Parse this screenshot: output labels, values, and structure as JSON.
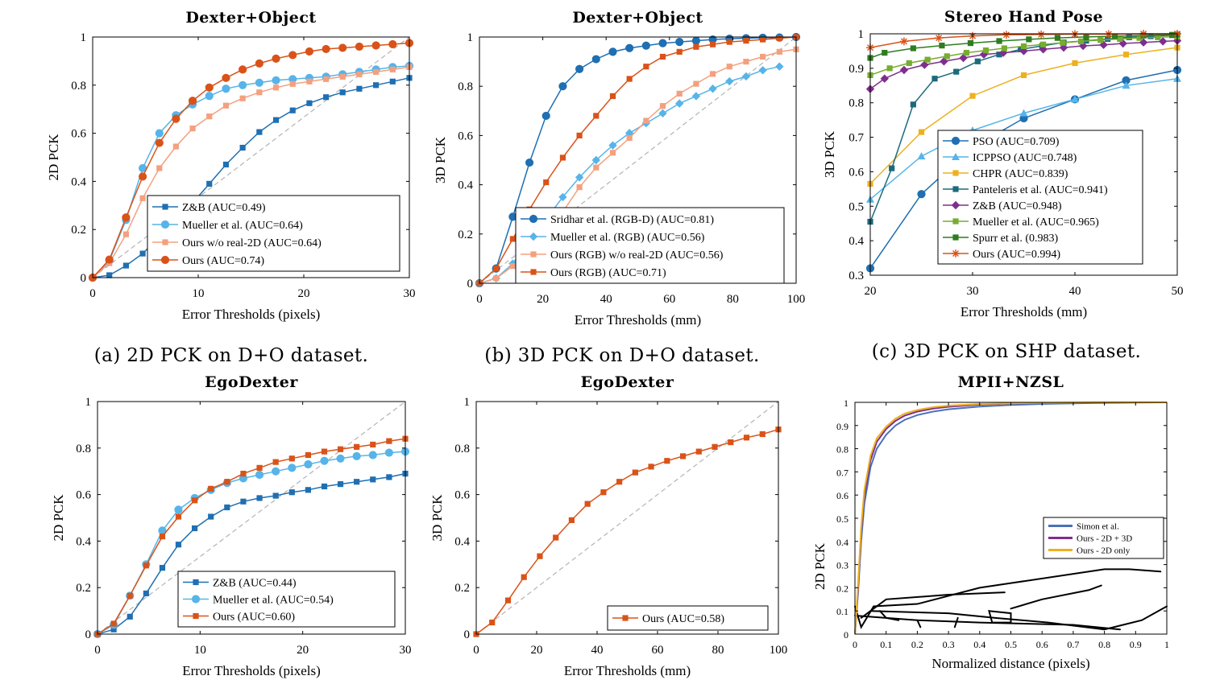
{
  "captions": [
    "(a) 2D PCK on D+O dataset.",
    "(b) 3D PCK on D+O dataset.",
    "(c) 3D PCK on SHP dataset."
  ],
  "colors": {
    "dark_blue": "#1f6fb2",
    "light_blue": "#56b4e9",
    "salmon": "#f4a07f",
    "red_orange": "#d95319",
    "yellow": "#edb120",
    "teal": "#1b6b7d",
    "purple": "#7e2f8e",
    "light_green": "#77ac30",
    "dark_green": "#2e7d1f",
    "steel_blue": "#4a72b8",
    "diag_gray": "#b3b3b3"
  },
  "chart_data": [
    {
      "id": "a",
      "type": "line",
      "title": "Dexter+Object",
      "xlabel": "Error Thresholds (pixels)",
      "ylabel": "2D PCK",
      "xlim": [
        0,
        30
      ],
      "ylim": [
        0,
        1
      ],
      "xticks": [
        "0",
        "10",
        "20",
        "30"
      ],
      "yticks": [
        "0",
        "0.2",
        "0.4",
        "0.6",
        "0.8",
        "1"
      ],
      "diagonal": true,
      "legend_position": "bottom-right",
      "x": [
        0,
        1.58,
        3.16,
        4.74,
        6.32,
        7.89,
        9.47,
        11.05,
        12.63,
        14.21,
        15.79,
        17.37,
        18.95,
        20.53,
        22.11,
        23.68,
        25.26,
        26.84,
        28.42,
        30
      ],
      "series": [
        {
          "name": "Z&B (AUC=0.49)",
          "color": "dark_blue",
          "marker": "square",
          "values": [
            0,
            0.01,
            0.05,
            0.1,
            0.17,
            0.24,
            0.31,
            0.39,
            0.47,
            0.54,
            0.605,
            0.655,
            0.695,
            0.725,
            0.75,
            0.77,
            0.785,
            0.8,
            0.815,
            0.83
          ]
        },
        {
          "name": "Mueller et al. (AUC=0.64)",
          "color": "light_blue",
          "marker": "circle",
          "values": [
            0,
            0.07,
            0.24,
            0.455,
            0.6,
            0.675,
            0.72,
            0.755,
            0.785,
            0.8,
            0.81,
            0.82,
            0.825,
            0.83,
            0.835,
            0.845,
            0.855,
            0.865,
            0.875,
            0.88
          ]
        },
        {
          "name": "Ours w/o real-2D (AUC=0.64)",
          "color": "salmon",
          "marker": "square",
          "values": [
            0,
            0.06,
            0.18,
            0.33,
            0.455,
            0.545,
            0.62,
            0.67,
            0.715,
            0.745,
            0.77,
            0.79,
            0.805,
            0.815,
            0.825,
            0.835,
            0.845,
            0.855,
            0.865,
            0.875
          ]
        },
        {
          "name": "Ours (AUC=0.74)",
          "color": "red_orange",
          "marker": "circle",
          "values": [
            0,
            0.075,
            0.25,
            0.42,
            0.56,
            0.66,
            0.735,
            0.79,
            0.83,
            0.865,
            0.89,
            0.91,
            0.925,
            0.94,
            0.95,
            0.955,
            0.96,
            0.965,
            0.97,
            0.975
          ]
        }
      ]
    },
    {
      "id": "b",
      "type": "line",
      "title": "Dexter+Object",
      "xlabel": "Error Thresholds (mm)",
      "ylabel": "3D PCK",
      "xlim": [
        0,
        100
      ],
      "ylim": [
        0,
        1
      ],
      "xticks": [
        "0",
        "20",
        "40",
        "60",
        "80",
        "100"
      ],
      "yticks": [
        "0",
        "0.2",
        "0.4",
        "0.6",
        "0.8",
        "1"
      ],
      "diagonal": true,
      "legend_position": "bottom-right",
      "series": [
        {
          "name": "Sridhar et al. (RGB-D) (AUC=0.81)",
          "color": "dark_blue",
          "marker": "circle",
          "x": [
            0,
            5.26,
            10.53,
            15.79,
            21.05,
            26.32,
            31.58,
            36.84,
            42.11,
            47.37,
            52.63,
            57.89,
            63.16,
            68.42,
            73.68,
            78.95,
            84.21,
            89.47,
            94.74,
            100
          ],
          "values": [
            0,
            0.06,
            0.27,
            0.49,
            0.68,
            0.8,
            0.87,
            0.91,
            0.94,
            0.955,
            0.965,
            0.975,
            0.98,
            0.985,
            0.99,
            0.993,
            0.995,
            0.997,
            0.998,
            1.0
          ]
        },
        {
          "name": "Mueller et al. (RGB) (AUC=0.56)",
          "color": "light_blue",
          "marker": "diamond",
          "x": [
            0,
            5.26,
            10.53,
            15.79,
            21.05,
            26.32,
            31.58,
            36.84,
            42.11,
            47.37,
            52.63,
            57.89,
            63.16,
            68.42,
            73.68,
            78.95,
            84.21,
            89.47,
            94.74
          ],
          "values": [
            0,
            0.02,
            0.08,
            0.17,
            0.26,
            0.35,
            0.43,
            0.5,
            0.56,
            0.61,
            0.65,
            0.69,
            0.73,
            0.76,
            0.79,
            0.82,
            0.84,
            0.865,
            0.88
          ]
        },
        {
          "name": "Ours (RGB) w/o real-2D (AUC=0.56)",
          "color": "salmon",
          "marker": "square",
          "x": [
            0,
            5.26,
            10.53,
            15.79,
            21.05,
            26.32,
            31.58,
            36.84,
            42.11,
            47.37,
            52.63,
            57.89,
            63.16,
            68.42,
            73.68,
            78.95,
            84.21,
            89.47,
            94.74,
            100
          ],
          "values": [
            0,
            0.02,
            0.07,
            0.14,
            0.21,
            0.29,
            0.39,
            0.47,
            0.53,
            0.59,
            0.66,
            0.72,
            0.77,
            0.81,
            0.85,
            0.88,
            0.9,
            0.92,
            0.94,
            0.95
          ]
        },
        {
          "name": "Ours (RGB) (AUC=0.71)",
          "color": "red_orange",
          "marker": "square",
          "x": [
            0,
            5.26,
            10.53,
            15.79,
            21.05,
            26.32,
            31.58,
            36.84,
            42.11,
            47.37,
            52.63,
            57.89,
            63.16,
            68.42,
            73.68,
            78.95,
            84.21,
            89.47,
            94.74,
            100
          ],
          "values": [
            0,
            0.06,
            0.18,
            0.3,
            0.41,
            0.51,
            0.6,
            0.68,
            0.76,
            0.83,
            0.88,
            0.92,
            0.94,
            0.96,
            0.97,
            0.98,
            0.985,
            0.99,
            0.995,
            1.0
          ]
        }
      ]
    },
    {
      "id": "c",
      "type": "line",
      "title": "Stereo Hand Pose",
      "xlabel": "Error Thresholds (mm)",
      "ylabel": "3D PCK",
      "xlim": [
        20,
        50
      ],
      "ylim": [
        0.3,
        1
      ],
      "xticks": [
        "20",
        "30",
        "40",
        "50"
      ],
      "yticks": [
        "0.3",
        "0.4",
        "0.5",
        "0.6",
        "0.7",
        "0.8",
        "0.9",
        "1"
      ],
      "diagonal": false,
      "legend_position": "center",
      "series": [
        {
          "name": "PSO (AUC=0.709)",
          "color": "dark_blue",
          "marker": "circle",
          "x": [
            20,
            25,
            30,
            35,
            40,
            45,
            50
          ],
          "values": [
            0.32,
            0.535,
            0.67,
            0.755,
            0.81,
            0.865,
            0.895
          ]
        },
        {
          "name": "ICPPSO (AUC=0.748)",
          "color": "light_blue",
          "marker": "triangle",
          "x": [
            20,
            25,
            30,
            35,
            40,
            45,
            50
          ],
          "values": [
            0.52,
            0.645,
            0.72,
            0.77,
            0.81,
            0.85,
            0.87
          ]
        },
        {
          "name": "CHPR (AUC=0.839)",
          "color": "yellow",
          "marker": "square",
          "x": [
            20,
            25,
            30,
            35,
            40,
            45,
            50
          ],
          "values": [
            0.565,
            0.715,
            0.82,
            0.88,
            0.915,
            0.94,
            0.96
          ]
        },
        {
          "name": "Panteleris et al. (AUC=0.941)",
          "color": "teal",
          "marker": "square",
          "x": [
            20,
            22.1,
            24.2,
            26.3,
            28.4,
            30.5,
            32.6,
            34.7,
            36.8,
            38.9,
            41.1,
            43.2,
            45.3,
            47.4,
            49.5,
            50
          ],
          "values": [
            0.455,
            0.61,
            0.795,
            0.87,
            0.89,
            0.92,
            0.94,
            0.955,
            0.965,
            0.975,
            0.98,
            0.985,
            0.99,
            0.993,
            0.996,
            0.997
          ]
        },
        {
          "name": "Z&B (AUC=0.948)",
          "color": "purple",
          "marker": "diamond",
          "x": [
            20,
            21.4,
            23.3,
            25.3,
            27.2,
            29.1,
            31.1,
            33,
            35,
            36.9,
            38.9,
            40.8,
            42.8,
            44.7,
            46.7,
            48.6,
            50
          ],
          "values": [
            0.84,
            0.87,
            0.895,
            0.91,
            0.92,
            0.93,
            0.94,
            0.945,
            0.95,
            0.955,
            0.96,
            0.965,
            0.968,
            0.972,
            0.975,
            0.978,
            0.98
          ]
        },
        {
          "name": "Mueller et al. (AUC=0.965)",
          "color": "light_green",
          "marker": "square",
          "x": [
            20,
            21.9,
            23.8,
            25.6,
            27.5,
            29.4,
            31.3,
            33.1,
            35,
            36.9,
            38.8,
            40.6,
            42.5,
            44.4,
            46.3,
            48.1,
            50
          ],
          "values": [
            0.88,
            0.9,
            0.915,
            0.925,
            0.935,
            0.945,
            0.952,
            0.958,
            0.964,
            0.969,
            0.974,
            0.978,
            0.982,
            0.985,
            0.988,
            0.99,
            0.992
          ]
        },
        {
          "name": "Spurr et al. (0.983)",
          "color": "dark_green",
          "marker": "square",
          "x": [
            20,
            21.4,
            24.2,
            27.0,
            29.8,
            32.6,
            35.5,
            38.3,
            41.1,
            43.9,
            46.7,
            49.5,
            50
          ],
          "values": [
            0.93,
            0.945,
            0.958,
            0.966,
            0.973,
            0.979,
            0.984,
            0.988,
            0.991,
            0.993,
            0.995,
            0.997,
            0.998
          ]
        },
        {
          "name": "Ours (AUC=0.994)",
          "color": "red_orange",
          "marker": "star",
          "x": [
            20,
            23.3,
            26.7,
            30,
            33.3,
            36.7,
            40,
            43.3,
            46.7,
            50
          ],
          "values": [
            0.96,
            0.978,
            0.988,
            0.994,
            0.997,
            0.998,
            0.999,
            0.999,
            1.0,
            1.0
          ]
        }
      ]
    },
    {
      "id": "d",
      "type": "line",
      "title": "EgoDexter",
      "xlabel": "Error Thresholds (pixels)",
      "ylabel": "2D PCK",
      "xlim": [
        0,
        30
      ],
      "ylim": [
        0,
        1
      ],
      "xticks": [
        "0",
        "10",
        "20",
        "30"
      ],
      "yticks": [
        "0",
        "0.2",
        "0.4",
        "0.6",
        "0.8",
        "1"
      ],
      "diagonal": true,
      "legend_position": "bottom-right",
      "x": [
        0,
        1.58,
        3.16,
        4.74,
        6.32,
        7.89,
        9.47,
        11.05,
        12.63,
        14.21,
        15.79,
        17.37,
        18.95,
        20.53,
        22.11,
        23.68,
        25.26,
        26.84,
        28.42,
        30
      ],
      "series": [
        {
          "name": "Z&B (AUC=0.44)",
          "color": "dark_blue",
          "marker": "square",
          "values": [
            0,
            0.02,
            0.075,
            0.175,
            0.285,
            0.385,
            0.455,
            0.505,
            0.545,
            0.57,
            0.585,
            0.595,
            0.61,
            0.62,
            0.635,
            0.645,
            0.655,
            0.665,
            0.675,
            0.69
          ]
        },
        {
          "name": "Mueller et al. (AUC=0.54)",
          "color": "light_blue",
          "marker": "circle",
          "values": [
            0,
            0.04,
            0.165,
            0.3,
            0.445,
            0.535,
            0.585,
            0.62,
            0.65,
            0.67,
            0.685,
            0.7,
            0.715,
            0.73,
            0.745,
            0.755,
            0.765,
            0.77,
            0.78,
            0.785
          ]
        },
        {
          "name": "Ours (AUC=0.60)",
          "color": "red_orange",
          "marker": "square",
          "values": [
            0,
            0.045,
            0.165,
            0.295,
            0.42,
            0.505,
            0.575,
            0.625,
            0.655,
            0.69,
            0.715,
            0.74,
            0.755,
            0.77,
            0.785,
            0.795,
            0.805,
            0.815,
            0.83,
            0.84
          ]
        }
      ]
    },
    {
      "id": "e",
      "type": "line",
      "title": "EgoDexter",
      "xlabel": "Error Thresholds (mm)",
      "ylabel": "3D PCK",
      "xlim": [
        0,
        100
      ],
      "ylim": [
        0,
        1
      ],
      "xticks": [
        "0",
        "20",
        "40",
        "60",
        "80",
        "100"
      ],
      "yticks": [
        "0",
        "0.2",
        "0.4",
        "0.6",
        "0.8",
        "1"
      ],
      "diagonal": true,
      "legend_position": "bottom-right",
      "series": [
        {
          "name": "Ours (AUC=0.58)",
          "color": "red_orange",
          "marker": "square",
          "x": [
            0,
            5.26,
            10.53,
            15.79,
            21.05,
            26.32,
            31.58,
            36.84,
            42.11,
            47.37,
            52.63,
            57.89,
            63.16,
            68.42,
            73.68,
            78.95,
            84.21,
            89.47,
            94.74,
            100
          ],
          "values": [
            0,
            0.05,
            0.145,
            0.245,
            0.335,
            0.415,
            0.49,
            0.56,
            0.61,
            0.655,
            0.695,
            0.72,
            0.745,
            0.765,
            0.785,
            0.805,
            0.825,
            0.845,
            0.86,
            0.88
          ]
        }
      ]
    },
    {
      "id": "f",
      "type": "line",
      "title": "MPII+NZSL",
      "xlabel": "Normalized distance (pixels)",
      "ylabel": "2D PCK",
      "xlim": [
        0,
        1
      ],
      "ylim": [
        0,
        1
      ],
      "xticks": [
        "0",
        "0.1",
        "0.2",
        "0.3",
        "0.4",
        "0.5",
        "0.6",
        "0.7",
        "0.8",
        "0.9",
        "1"
      ],
      "yticks": [
        "0",
        "0.1",
        "0.2",
        "0.3",
        "0.4",
        "0.5",
        "0.6",
        "0.7",
        "0.8",
        "0.9",
        "1"
      ],
      "diagonal": false,
      "legend_position": "middle-right",
      "x": [
        0,
        0.01,
        0.02,
        0.03,
        0.05,
        0.07,
        0.1,
        0.13,
        0.16,
        0.2,
        0.25,
        0.3,
        0.4,
        0.5,
        0.6,
        0.7,
        0.8,
        0.9,
        1.0
      ],
      "series": [
        {
          "name": "Simon et al.",
          "color": "steel_blue",
          "marker": "none",
          "values": [
            0,
            0.18,
            0.4,
            0.56,
            0.72,
            0.8,
            0.86,
            0.9,
            0.925,
            0.945,
            0.96,
            0.97,
            0.982,
            0.989,
            0.993,
            0.996,
            0.998,
            0.999,
            1.0
          ]
        },
        {
          "name": "Ours - 2D + 3D",
          "color": "purple",
          "marker": "none",
          "values": [
            0,
            0.2,
            0.44,
            0.6,
            0.75,
            0.83,
            0.885,
            0.92,
            0.943,
            0.96,
            0.973,
            0.981,
            0.99,
            0.995,
            0.997,
            0.998,
            0.999,
            1.0,
            1.0
          ]
        },
        {
          "name": "Ours - 2D only",
          "color": "yellow",
          "marker": "none",
          "values": [
            0,
            0.22,
            0.46,
            0.62,
            0.77,
            0.845,
            0.895,
            0.93,
            0.952,
            0.967,
            0.979,
            0.986,
            0.993,
            0.996,
            0.998,
            0.999,
            1.0,
            1.0,
            1.0
          ]
        }
      ]
    }
  ]
}
